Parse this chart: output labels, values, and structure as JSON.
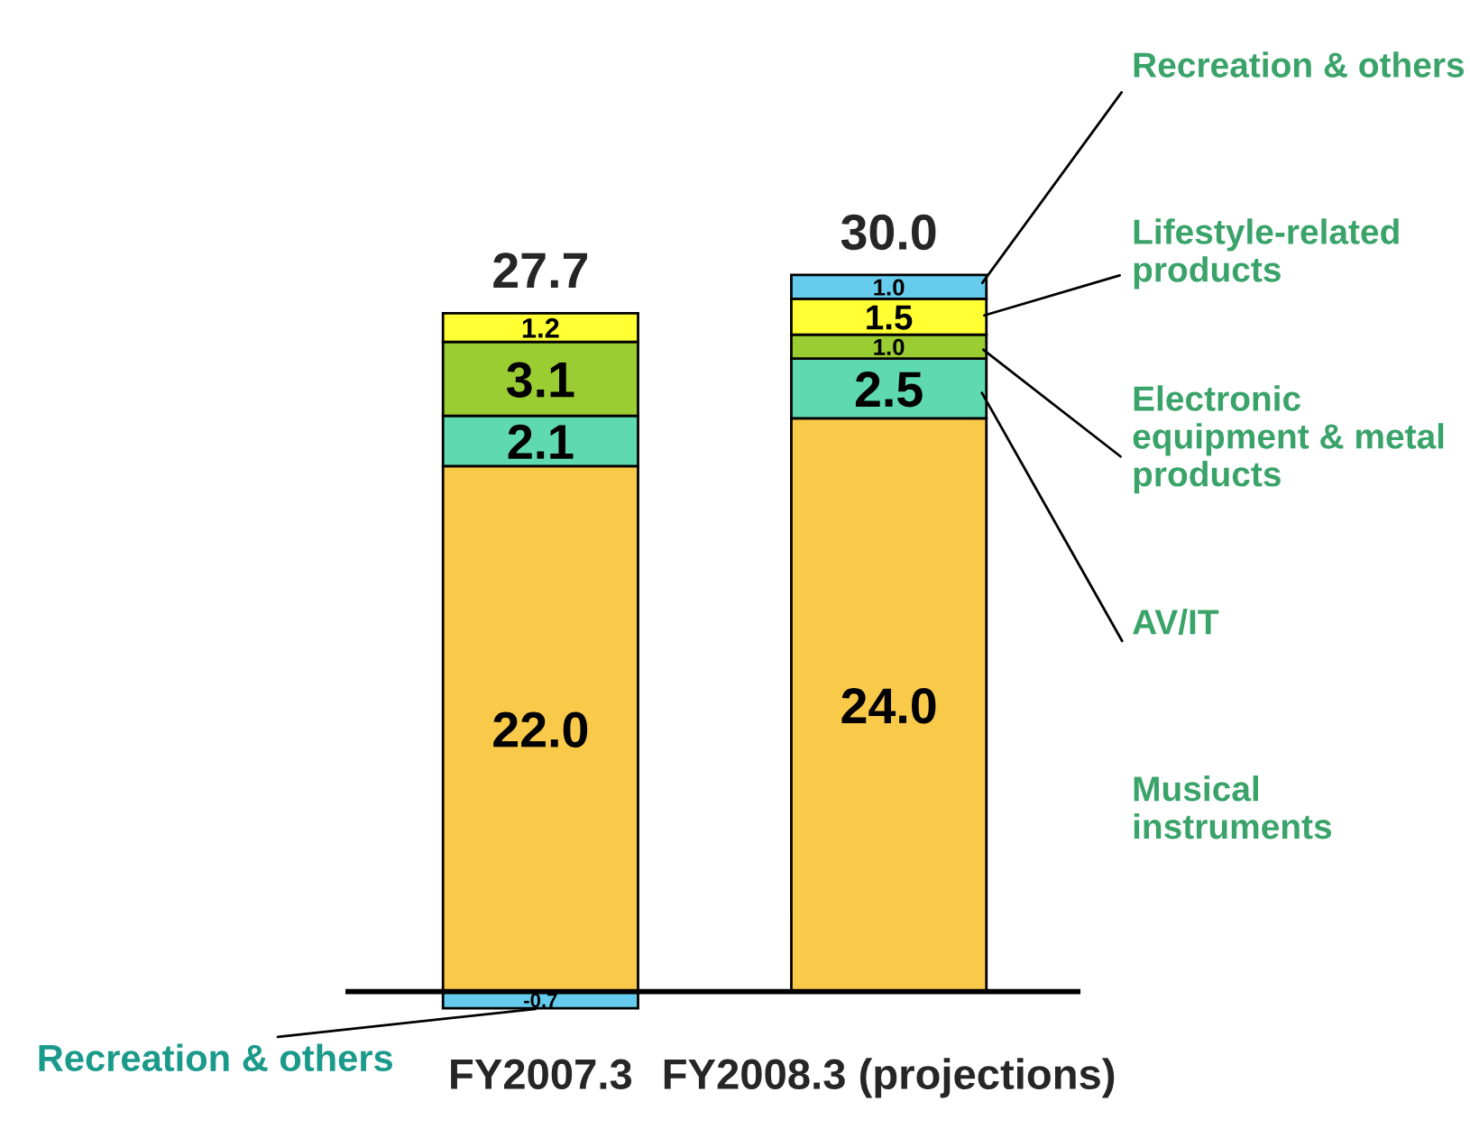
{
  "chart_data": {
    "type": "bar",
    "stacked": true,
    "categories": [
      "FY2007.3",
      "FY2008.3 (projections)"
    ],
    "series": [
      {
        "name": "Musical instruments",
        "color": "#f9c94a",
        "values": [
          22.0,
          24.0
        ],
        "value_labels": [
          "22.0",
          "24.0"
        ]
      },
      {
        "name": "AV/IT",
        "color": "#5fd9b0",
        "values": [
          2.1,
          2.5
        ],
        "value_labels": [
          "2.1",
          "2.5"
        ]
      },
      {
        "name": "Electronic equipment & metal products",
        "color": "#9acd32",
        "values": [
          3.1,
          1.0
        ],
        "value_labels": [
          "3.1",
          "1.0"
        ]
      },
      {
        "name": "Lifestyle-related products",
        "color": "#ffff33",
        "values": [
          1.2,
          1.5
        ],
        "value_labels": [
          "1.2",
          "1.5"
        ]
      },
      {
        "name": "Recreation & others",
        "color": "#66ccee",
        "values": [
          -0.7,
          1.0
        ],
        "value_labels": [
          "-0.7",
          "1.0"
        ]
      }
    ],
    "totals": [
      "27.7",
      "30.0"
    ],
    "annotations": [
      {
        "text": "Recreation & others",
        "x": "FY2007.3",
        "y": -0.7
      }
    ],
    "grid": false,
    "legend": false
  }
}
